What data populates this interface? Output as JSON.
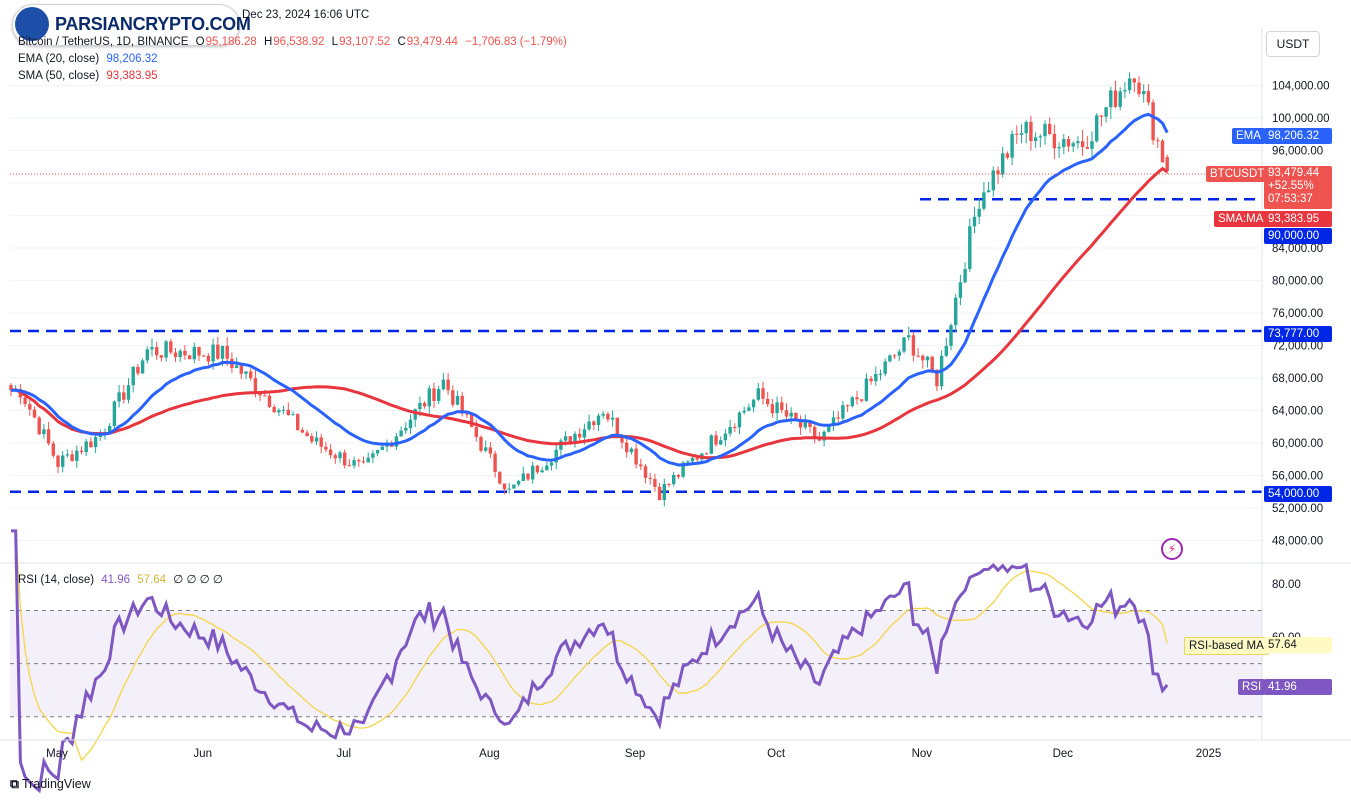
{
  "header": {
    "logo_text": "PARSIANCRYPTO.COM",
    "date_stamp": "Dec 23, 2024 16:06 UTC",
    "symbol_line": "Bitcoin / TetherUS, 1D, BINANCE",
    "ohlc": {
      "o_label": "O",
      "o": "95,186.28",
      "h_label": "H",
      "h": "96,538.92",
      "l_label": "L",
      "l": "93,107.52",
      "c_label": "C",
      "c": "93,479.44",
      "change": "−1,706.83 (−1.79%)"
    },
    "ema_label": "EMA (20, close)",
    "ema_value": "98,206.32",
    "sma_label": "SMA (50, close)",
    "sma_value": "93,383.95",
    "rsi_label": "RSI (14, close)",
    "rsi_value": "41.96",
    "rsi_ma_value": "57.64",
    "rsi_extra": "∅  ∅  ∅  ∅"
  },
  "currency_button": "USDT",
  "price_axis_ticks": [
    "104,000.00",
    "100,000.00",
    "96,000.00",
    "84,000.00",
    "80,000.00",
    "76,000.00",
    "72,000.00",
    "68,000.00",
    "64,000.00",
    "60,000.00",
    "56,000.00",
    "52,000.00",
    "48,000.00"
  ],
  "rsi_axis_ticks": [
    "80.00",
    "60.00",
    "40.00"
  ],
  "time_axis_ticks": [
    "May",
    "Jun",
    "Jul",
    "Aug",
    "Sep",
    "Oct",
    "Nov",
    "Dec",
    "2025"
  ],
  "tags": {
    "ema": {
      "label": "EMA",
      "value": "98,206.32"
    },
    "btc": {
      "label": "BTCUSDT",
      "value": "93,479.44",
      "change": "+52.55%",
      "countdown": "07:53:37"
    },
    "sma": {
      "label": "SMA:MA",
      "value": "93,383.95"
    },
    "level_90k": "90,000.00",
    "level_73k": "73,777.00",
    "level_54k": "54,000.00",
    "rsi_ma": {
      "label": "RSI-based MA",
      "value": "57.64"
    },
    "rsi": {
      "label": "RSI",
      "value": "41.96"
    }
  },
  "footer": "TradingView",
  "colors": {
    "up": "#26a69a",
    "down": "#ef5350",
    "ema": "#2962ff",
    "sma": "#e8353e",
    "level": "#0026e6",
    "rsi": "#7e57c2",
    "rsi_ma": "#f5d547",
    "rsi_band": "#7e57c2"
  },
  "chart_data": {
    "type": "candlestick",
    "title": "Bitcoin / TetherUS, 1D, BINANCE",
    "y_range": [
      46000,
      109000
    ],
    "horizontal_levels": [
      90000,
      73777,
      54000
    ],
    "last_close": 93479.44,
    "ema20_last": 98206.32,
    "sma50_last": 93383.95,
    "closes_approx": [
      {
        "date": "2024-04-23",
        "close": 66500
      },
      {
        "date": "2024-05-01",
        "close": 57500
      },
      {
        "date": "2024-05-10",
        "close": 61000
      },
      {
        "date": "2024-05-20",
        "close": 71400
      },
      {
        "date": "2024-06-05",
        "close": 71000
      },
      {
        "date": "2024-06-24",
        "close": 60300
      },
      {
        "date": "2024-07-05",
        "close": 56700
      },
      {
        "date": "2024-07-22",
        "close": 67600
      },
      {
        "date": "2024-08-05",
        "close": 54000
      },
      {
        "date": "2024-08-25",
        "close": 64200
      },
      {
        "date": "2024-09-06",
        "close": 53900
      },
      {
        "date": "2024-09-27",
        "close": 65800
      },
      {
        "date": "2024-10-10",
        "close": 60300
      },
      {
        "date": "2024-10-29",
        "close": 72700
      },
      {
        "date": "2024-11-04",
        "close": 67800
      },
      {
        "date": "2024-11-13",
        "close": 90300
      },
      {
        "date": "2024-11-22",
        "close": 98500
      },
      {
        "date": "2024-12-05",
        "close": 97000
      },
      {
        "date": "2024-12-16",
        "close": 106100
      },
      {
        "date": "2024-12-23",
        "close": 93479
      }
    ],
    "rsi": {
      "period": 14,
      "y_range": [
        20,
        90
      ],
      "bands": [
        70,
        50,
        30
      ],
      "last": 41.96,
      "ma_last": 57.64
    }
  }
}
